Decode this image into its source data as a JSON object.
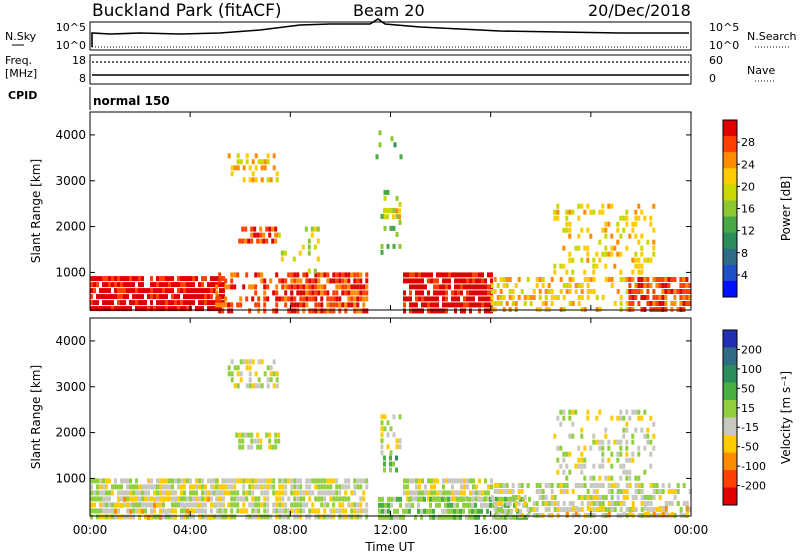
{
  "header": {
    "site": "Buckland Park (fitACF)",
    "beam": "Beam 20",
    "date": "20/Dec/2018"
  },
  "top_panels": {
    "nsky_label": "N.Sky",
    "nsky_ticks": [
      "10^5",
      "10^0"
    ],
    "nsearch_label": "N.Search",
    "nsearch_ticks": [
      "10^5",
      "10^0"
    ],
    "freq_label": "Freq.",
    "freq_unit": "[MHz]",
    "freq_ticks": [
      "18",
      "8"
    ],
    "nave_label": "Nave",
    "nave_ticks": [
      "60",
      "0"
    ],
    "cpid_label": "CPID",
    "cpid_value": "normal 150"
  },
  "chart_data": [
    {
      "type": "heatmap",
      "name": "power",
      "ylabel": "Slant Range [km]",
      "yticks": [
        1000,
        2000,
        3000,
        4000
      ],
      "ylim": [
        180,
        4500
      ],
      "colorbar_label": "Power [dB]",
      "colorbar_ticks": [
        "28",
        "24",
        "20",
        "16",
        "12",
        "8",
        "4"
      ],
      "colors": [
        "#e00000",
        "#ff4000",
        "#ff8c00",
        "#ffcc00",
        "#c8d800",
        "#8cc830",
        "#48a848",
        "#2c8c5a",
        "#306c88",
        "#2050c8",
        "#0010ff"
      ],
      "regions": [
        {
          "t0": 0.0,
          "t1": 5.3,
          "r0": 180,
          "r1": 920,
          "level": 0,
          "density": 0.85
        },
        {
          "t0": 5.0,
          "t1": 8.0,
          "r0": 180,
          "r1": 1000,
          "level": 1,
          "density": 0.45
        },
        {
          "t0": 8.0,
          "t1": 11.0,
          "r0": 180,
          "r1": 1000,
          "level": 1,
          "density": 0.8
        },
        {
          "t0": 12.5,
          "t1": 16.0,
          "r0": 180,
          "r1": 1000,
          "level": 0,
          "density": 0.85
        },
        {
          "t0": 16.0,
          "t1": 21.5,
          "r0": 180,
          "r1": 900,
          "level": 3,
          "density": 0.4
        },
        {
          "t0": 21.5,
          "t1": 24.0,
          "r0": 180,
          "r1": 900,
          "level": 1,
          "density": 0.7
        },
        {
          "t0": 5.8,
          "t1": 7.5,
          "r0": 1650,
          "r1": 2000,
          "level": 1,
          "density": 0.7
        },
        {
          "t0": 5.5,
          "t1": 7.5,
          "r0": 3000,
          "r1": 3600,
          "level": 3,
          "density": 0.4
        },
        {
          "t0": 11.7,
          "t1": 12.3,
          "r0": 2200,
          "r1": 2400,
          "level": 3,
          "density": 0.7
        },
        {
          "t0": 11.6,
          "t1": 12.4,
          "r0": 1400,
          "r1": 2800,
          "level": 5,
          "density": 0.25
        },
        {
          "t0": 18.5,
          "t1": 22.5,
          "r0": 1000,
          "r1": 2500,
          "level": 3,
          "density": 0.3
        },
        {
          "t0": 7.5,
          "t1": 9.5,
          "r0": 1000,
          "r1": 2000,
          "level": 4,
          "density": 0.15
        },
        {
          "t0": 11.4,
          "t1": 12.4,
          "r0": 3500,
          "r1": 4100,
          "level": 6,
          "density": 0.15
        }
      ]
    },
    {
      "type": "heatmap",
      "name": "velocity",
      "ylabel": "Slant Range [km]",
      "yticks": [
        1000,
        2000,
        3000,
        4000
      ],
      "ylim": [
        180,
        4500
      ],
      "xlabel": "Time UT",
      "xticks": [
        "00:00",
        "04:00",
        "08:00",
        "12:00",
        "16:00",
        "20:00",
        "00:00"
      ],
      "xlim": [
        0,
        24
      ],
      "colorbar_label": "Velocity [m s⁻¹]",
      "colorbar_ticks": [
        "200",
        "100",
        "50",
        "15",
        "-15",
        "-50",
        "-100",
        "-200"
      ],
      "colors": [
        "#2030b0",
        "#306c88",
        "#2c8c5a",
        "#48b040",
        "#90d040",
        "#c8c8c0",
        "#ffcc00",
        "#ff8c00",
        "#ff4000",
        "#e00000"
      ],
      "regions": [
        {
          "t0": 0.0,
          "t1": 5.3,
          "r0": 180,
          "r1": 1000,
          "level": 5,
          "density": 0.85
        },
        {
          "t0": 0.0,
          "t1": 5.3,
          "r0": 180,
          "r1": 600,
          "level": 6,
          "density": 0.15
        },
        {
          "t0": 5.0,
          "t1": 11.0,
          "r0": 180,
          "r1": 1000,
          "level": 5,
          "density": 0.75
        },
        {
          "t0": 12.5,
          "t1": 16.0,
          "r0": 600,
          "r1": 1000,
          "level": 5,
          "density": 0.8
        },
        {
          "t0": 11.5,
          "t1": 17.5,
          "r0": 180,
          "r1": 600,
          "level": 4,
          "density": 0.75
        },
        {
          "t0": 16.0,
          "t1": 24.0,
          "r0": 180,
          "r1": 900,
          "level": 5,
          "density": 0.6
        },
        {
          "t0": 19.0,
          "t1": 24.0,
          "r0": 180,
          "r1": 400,
          "level": 6,
          "density": 0.3
        },
        {
          "t0": 5.8,
          "t1": 7.5,
          "r0": 1650,
          "r1": 2000,
          "level": 5,
          "density": 0.75
        },
        {
          "t0": 5.5,
          "t1": 7.5,
          "r0": 3000,
          "r1": 3600,
          "level": 5,
          "density": 0.4
        },
        {
          "t0": 11.6,
          "t1": 12.4,
          "r0": 1500,
          "r1": 2400,
          "level": 5,
          "density": 0.5
        },
        {
          "t0": 11.7,
          "t1": 12.2,
          "r0": 1200,
          "r1": 1500,
          "level": 3,
          "density": 0.6
        },
        {
          "t0": 18.5,
          "t1": 22.5,
          "r0": 1000,
          "r1": 2500,
          "level": 5,
          "density": 0.3
        }
      ]
    }
  ]
}
